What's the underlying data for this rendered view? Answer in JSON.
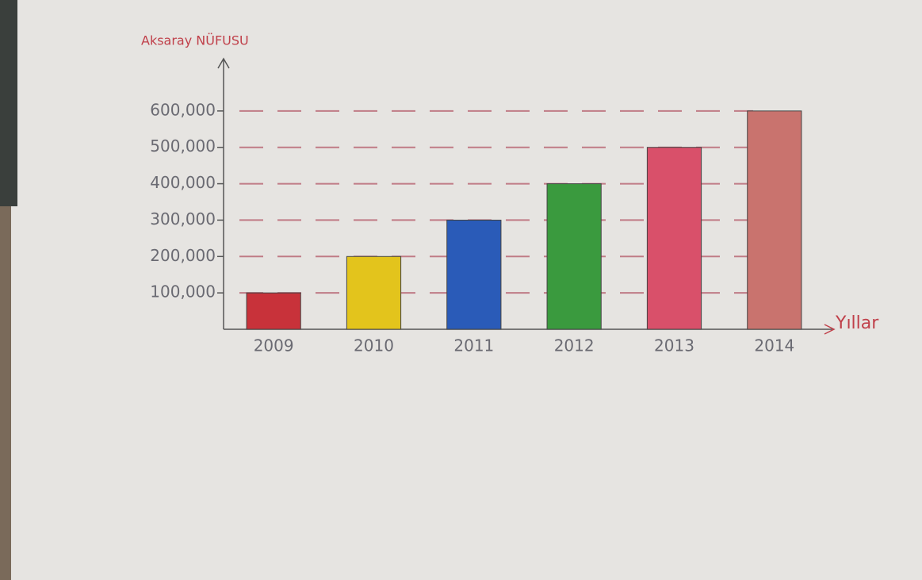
{
  "chart_data": {
    "type": "bar",
    "y_label": "Aksaray NÜFUSU",
    "x_label": "Yıllar",
    "categories": [
      "2009",
      "2010",
      "2011",
      "2012",
      "2013",
      "2014"
    ],
    "values": [
      100000,
      200000,
      300000,
      400000,
      500000,
      600000
    ],
    "colors": [
      "#c8323a",
      "#e3c41c",
      "#2a5bb8",
      "#3a9a3e",
      "#d9506a",
      "#c9736e"
    ],
    "ylim": [
      0,
      700000
    ],
    "yticks": [
      {
        "value": 100000,
        "label": "100,000"
      },
      {
        "value": 200000,
        "label": "200,000"
      },
      {
        "value": 300000,
        "label": "300,000"
      },
      {
        "value": 400000,
        "label": "400,000"
      },
      {
        "value": 500000,
        "label": "500,000"
      },
      {
        "value": 600000,
        "label": "600,000"
      }
    ],
    "grid": true
  }
}
